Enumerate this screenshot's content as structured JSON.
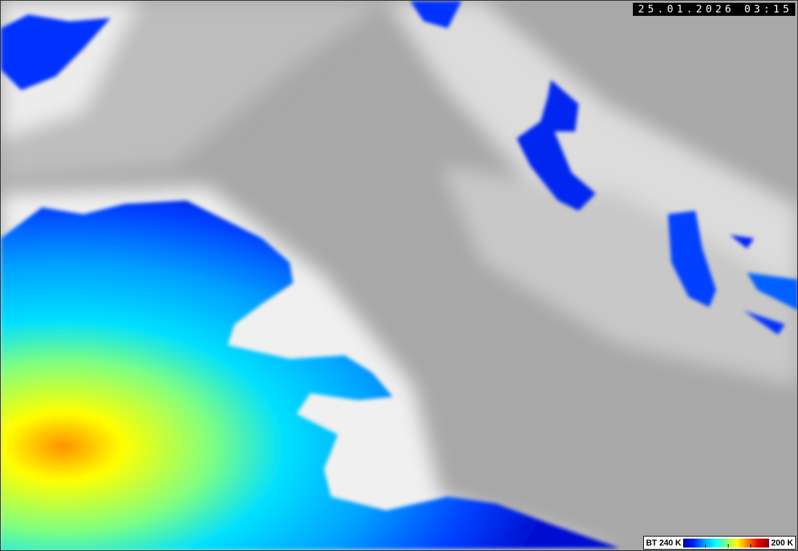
{
  "timestamp": "25.01.2026 03:15",
  "legend": {
    "left_label": "BT 240 K",
    "right_label": "200 K",
    "colors": [
      "#000090",
      "#0020ff",
      "#00a0ff",
      "#00ffff",
      "#80ff80",
      "#ffff00",
      "#ff8000",
      "#e00000",
      "#900000"
    ]
  },
  "background_colors": {
    "cloud_gray": "#a9a9a9",
    "cold_white": "#f4f4f4"
  }
}
